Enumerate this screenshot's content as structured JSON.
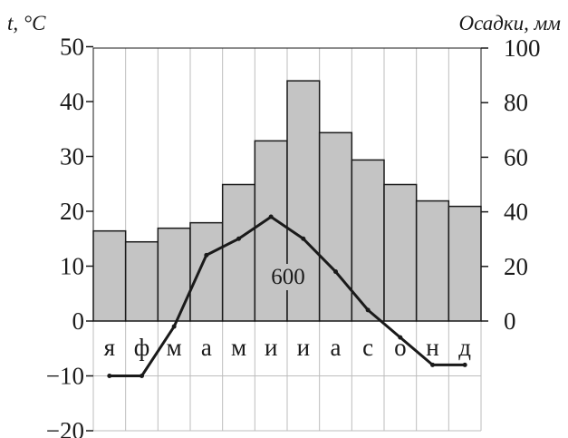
{
  "chart_data": {
    "type": "bar+line",
    "title": "",
    "categories": [
      "я",
      "ф",
      "м",
      "а",
      "м",
      "и",
      "и",
      "а",
      "с",
      "о",
      "н",
      "д"
    ],
    "y_left": {
      "label": "t, °C",
      "range": [
        -20,
        50
      ],
      "ticks": [
        "50",
        "40",
        "30",
        "20",
        "10",
        "0",
        "−10",
        "−20"
      ]
    },
    "y_right": {
      "label": "Осадки, мм",
      "range": [
        0,
        100
      ],
      "ticks": [
        "100",
        "80",
        "60",
        "40",
        "20",
        "0"
      ]
    },
    "precipitation_mm": [
      33,
      29,
      34,
      36,
      50,
      66,
      88,
      69,
      59,
      50,
      44,
      42
    ],
    "temperature_c": [
      -10,
      -10,
      -1,
      12,
      15,
      19,
      15,
      9,
      2,
      -3,
      -8,
      -8
    ],
    "annual_precipitation_label": "600",
    "grid": true,
    "colors": {
      "bars": "#c4c4c4",
      "bar_stroke": "#1a1a1a",
      "line": "#1a1a1a",
      "grid": "#bdbdbd"
    }
  }
}
